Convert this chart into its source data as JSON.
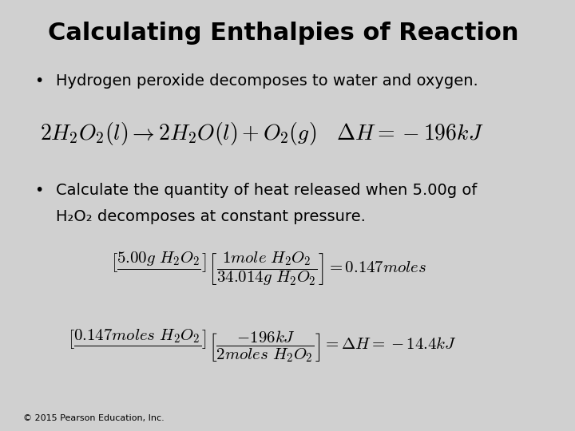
{
  "title": "Calculating Enthalpies of Reaction",
  "background_color": "#d0d0d0",
  "title_fontsize": 22,
  "title_color": "#000000",
  "title_fontstyle": "normal",
  "bullet1": "Hydrogen peroxide decomposes to water and oxygen.",
  "bullet2_line1": "Calculate the quantity of heat released when 5.00g of",
  "bullet2_line2": "H₂O₂ decomposes at constant pressure.",
  "equation": "$2H_2O_2(l) \\rightarrow 2H_2O(l) + O_2(g) \\quad \\Delta H = -196kJ$",
  "calc1_top": "$\\left[\\dfrac{5.00g\\ H_2O_2}{}\\right]\\left[\\dfrac{1mole\\ H_2O_2}{34.014g\\ H_2O_2}\\right] = 0.147 moles$",
  "calc2": "$\\left[\\dfrac{0.147 moles\\ H_2O_2}{}\\right]\\left[\\dfrac{-196kJ}{2 moles\\ H_2O_2}\\right] = \\Delta H = -14.4kJ$",
  "copyright": "© 2015 Pearson Education, Inc.",
  "text_color": "#000000",
  "bullet_fontsize": 14,
  "eq_fontsize": 18,
  "calc_fontsize": 14,
  "copyright_fontsize": 8
}
